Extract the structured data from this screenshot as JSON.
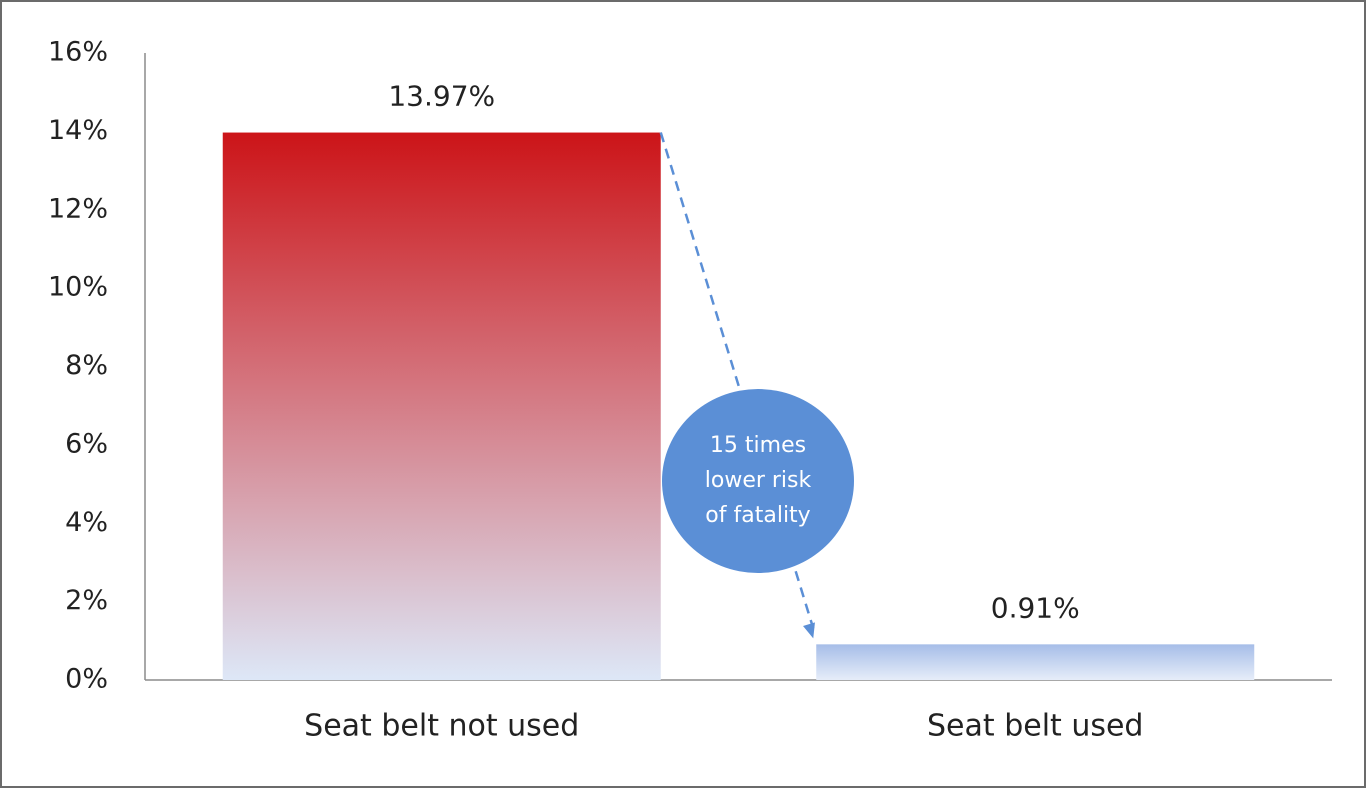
{
  "chart_data": {
    "type": "bar",
    "categories": [
      "Seat belt not used",
      "Seat belt used"
    ],
    "values": [
      13.97,
      0.91
    ],
    "value_labels": [
      "13.97%",
      "0.91%"
    ],
    "gradients": [
      [
        "#cc1418",
        "#dde7f7"
      ],
      [
        "#a6bde8",
        "#e6edf9"
      ]
    ],
    "ylim": [
      0,
      16
    ],
    "yticks": [
      {
        "value": 0,
        "label": "0%"
      },
      {
        "value": 2,
        "label": "2%"
      },
      {
        "value": 4,
        "label": "4%"
      },
      {
        "value": 6,
        "label": "6%"
      },
      {
        "value": 8,
        "label": "8%"
      },
      {
        "value": 10,
        "label": "10%"
      },
      {
        "value": 12,
        "label": "12%"
      },
      {
        "value": 14,
        "label": "14%"
      },
      {
        "value": 16,
        "label": "16%"
      }
    ],
    "grid": false,
    "annotation": [
      "15 times",
      "lower risk",
      "of fatality"
    ],
    "annotation_color": "#5b8fd6"
  }
}
